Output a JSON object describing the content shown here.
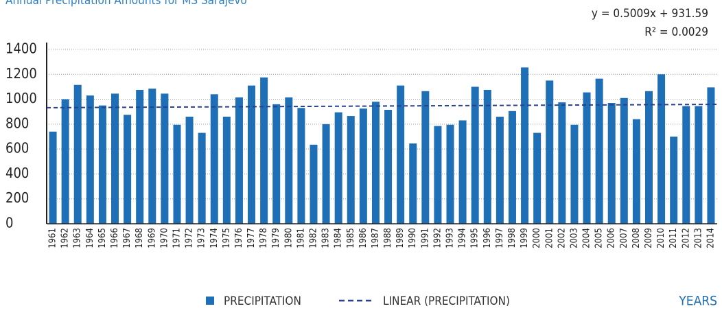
{
  "chart_data": {
    "type": "bar",
    "title": "Annual Precipitation Amounts for MS Sarajevo",
    "x_label": "YEARS",
    "equation": "y = 0.5009x + 931.59",
    "r_squared": "R² = 0.0029",
    "categories": [
      "1961",
      "1962",
      "1963",
      "1964",
      "1965",
      "1966",
      "1967",
      "1968",
      "1969",
      "1970",
      "1971",
      "1972",
      "1973",
      "1974",
      "1975",
      "1976",
      "1977",
      "1978",
      "1979",
      "1980",
      "1981",
      "1982",
      "1983",
      "1984",
      "1985",
      "1986",
      "1987",
      "1988",
      "1989",
      "1990",
      "1991",
      "1992",
      "1993",
      "1994",
      "1995",
      "1996",
      "1997",
      "1998",
      "1999",
      "2000",
      "2001",
      "2002",
      "2003",
      "2004",
      "2005",
      "2006",
      "2007",
      "2008",
      "2009",
      "2010",
      "2011",
      "2012",
      "2013",
      "2014"
    ],
    "series": [
      {
        "name": "PRECIPITATION",
        "color": "#1f6fb6",
        "values": [
          740,
          1000,
          1115,
          1030,
          950,
          1045,
          875,
          1075,
          1085,
          1045,
          795,
          860,
          730,
          1040,
          860,
          1015,
          1110,
          1175,
          960,
          1015,
          930,
          635,
          800,
          895,
          865,
          925,
          980,
          915,
          1110,
          645,
          1065,
          785,
          795,
          830,
          1100,
          1075,
          860,
          905,
          1255,
          730,
          1150,
          975,
          795,
          1055,
          1165,
          970,
          1010,
          840,
          1065,
          1200,
          700,
          945,
          945,
          1095
        ]
      }
    ],
    "trendline": {
      "name": "LINEAR (PRECIPITATION)",
      "color": "#2b3f8f",
      "values": [
        932,
        959
      ]
    },
    "ylim": [
      0,
      1400
    ],
    "yticks": [
      0,
      200,
      400,
      600,
      800,
      1000,
      1200,
      1400
    ],
    "grid": true
  }
}
